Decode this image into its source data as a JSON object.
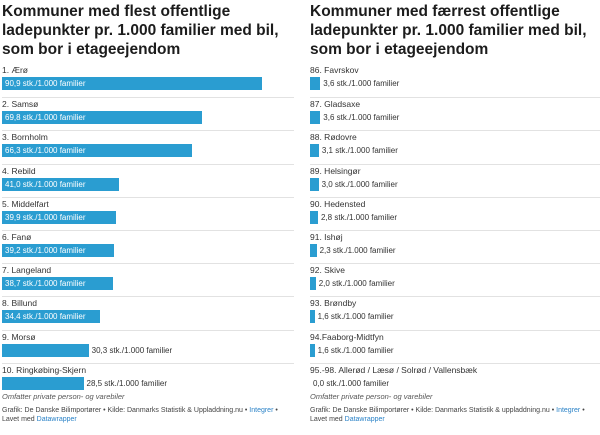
{
  "chart_data": [
    {
      "type": "bar",
      "orientation": "horizontal",
      "title": "Kommuner med flest offentlige ladepunkter pr. 1.000 familier med bil, som bor i etageejendom",
      "unit": "stk./1.000 familier",
      "xlim": [
        0,
        100
      ],
      "bar_color": "#2a9dd1",
      "categories": [
        "1. Ærø",
        "2. Samsø",
        "3. Bornholm",
        "4. Rebild",
        "5. Middelfart",
        "6. Fanø",
        "7. Langeland",
        "8. Billund",
        "9. Morsø",
        "10. Ringkøbing-Skjern"
      ],
      "values": [
        90.9,
        69.8,
        66.3,
        41.0,
        39.9,
        39.2,
        38.7,
        34.4,
        30.3,
        28.5
      ],
      "labels": [
        "90,9 stk./1.000 familier",
        "69,8 stk./1.000 familier",
        "66,3 stk./1.000 familier",
        "41,0 stk./1.000 familier",
        "39,9 stk./1.000 familier",
        "39,2 stk./1.000 familier",
        "38,7 stk./1.000 familier",
        "34,4 stk./1.000 familier",
        "30,3 stk./1.000 familier",
        "28,5 stk./1.000 familier"
      ],
      "label_outside": [
        false,
        false,
        false,
        false,
        false,
        false,
        false,
        false,
        true,
        true
      ]
    },
    {
      "type": "bar",
      "orientation": "horizontal",
      "title": "Kommuner med færrest offentlige ladepunkter pr. 1.000 familier med bil, som bor i etageejendom",
      "unit": "stk./1.000 familier",
      "xlim": [
        0,
        100
      ],
      "bar_color": "#2a9dd1",
      "categories": [
        "86. Favrskov",
        "87. Gladsaxe",
        "88. Rødovre",
        "89. Helsingør",
        "90. Hedensted",
        "91. Ishøj",
        "92. Skive",
        "93. Brøndby",
        "94.Faaborg-Midtfyn",
        "95.-98. Allerød / Læsø / Solrød / Vallensbæk"
      ],
      "values": [
        3.6,
        3.6,
        3.1,
        3.0,
        2.8,
        2.3,
        2.0,
        1.6,
        1.6,
        0.0
      ],
      "labels": [
        "3,6 stk./1.000 familier",
        "3,6 stk./1.000 familier",
        "3,1 stk./1.000 familier",
        "3,0 stk./1.000 familier",
        "2,8 stk./1.000 familier",
        "2,3 stk./1.000 familier",
        "2,0 stk./1.000 familier",
        "1,6 stk./1.000 familier",
        "1,6 stk./1.000 familier",
        "0,0 stk./1.000 familier"
      ],
      "label_outside": [
        true,
        true,
        true,
        true,
        true,
        true,
        true,
        true,
        true,
        true
      ]
    }
  ],
  "footer": {
    "note": "Omfatter private person- og varebiler",
    "credit_left": "Grafik: De Danske Bilimportører • Kilde: Danmarks Statistik & Uppladdning.nu •",
    "credit_right": "Grafik: De Danske Bilimportører • Kilde: Danmarks Statistik & uppladdning.nu •",
    "link1": "Integrer",
    "sep": " • Lavet med ",
    "link2": "Datawrapper"
  }
}
